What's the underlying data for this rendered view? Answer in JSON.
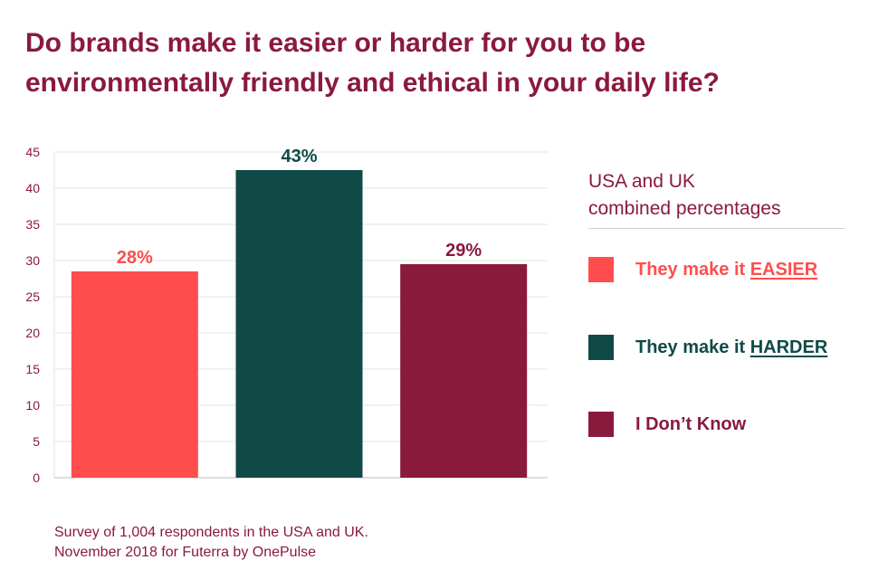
{
  "title": {
    "line1": "Do brands make it easier or harder for you to be",
    "line2": "environmentally friendly and ethical in your daily life?"
  },
  "legend": {
    "heading_line1": "USA and UK",
    "heading_line2": "combined percentages",
    "items": [
      {
        "prefix": "They make it ",
        "emphasis": "EASIER",
        "color": "#ff4d4d"
      },
      {
        "prefix": "They make it ",
        "emphasis": "HARDER",
        "color": "#0f4a47"
      },
      {
        "prefix": "",
        "emphasis": "",
        "text": "I Don’t Know",
        "color": "#8a1a3c"
      }
    ]
  },
  "footer": {
    "line1": "Survey of 1,004 respondents in the USA and UK.",
    "line2": "November 2018 for Futerra by OnePulse"
  },
  "chart_data": {
    "type": "bar",
    "categories": [
      "They make it EASIER",
      "They make it HARDER",
      "I Don’t Know"
    ],
    "values": [
      28,
      43,
      29
    ],
    "value_labels": [
      "28%",
      "43%",
      "29%"
    ],
    "colors": [
      "#ff4d4d",
      "#0f4a47",
      "#8a1a3c"
    ],
    "label_colors": [
      "#ff4d4d",
      "#0f4a47",
      "#8a1a3c"
    ],
    "ylim": [
      0,
      45
    ],
    "yticks": [
      0,
      5,
      10,
      15,
      20,
      25,
      30,
      35,
      40,
      45
    ],
    "grid": true,
    "legend_position": "right",
    "title": "Do brands make it easier or harder for you to be environmentally friendly and ethical in your daily life?",
    "xlabel": "",
    "ylabel": ""
  }
}
